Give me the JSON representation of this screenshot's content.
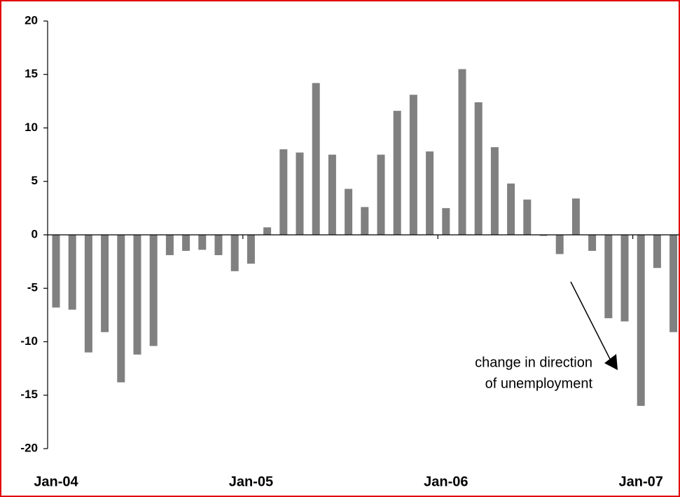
{
  "chart_data": {
    "type": "bar",
    "categories": [
      "Jan-04",
      null,
      null,
      null,
      null,
      null,
      null,
      null,
      null,
      null,
      null,
      null,
      "Jan-05",
      null,
      null,
      null,
      null,
      null,
      null,
      null,
      null,
      null,
      null,
      null,
      "Jan-06",
      null,
      null,
      null,
      null,
      null,
      null,
      null,
      null,
      null,
      null,
      null,
      "Jan-07",
      null,
      null
    ],
    "values": [
      -6.8,
      -7.0,
      -11.0,
      -9.1,
      -13.8,
      -11.2,
      -10.4,
      -1.9,
      -1.5,
      -1.4,
      -1.9,
      -3.4,
      -2.7,
      0.7,
      8.0,
      7.7,
      14.2,
      7.5,
      4.3,
      2.6,
      7.5,
      11.6,
      13.1,
      7.8,
      2.5,
      15.5,
      12.4,
      8.2,
      4.8,
      3.3,
      -0.1,
      -1.8,
      3.4,
      -1.5,
      -7.8,
      -8.1,
      -16.0,
      -3.1,
      -9.1
    ],
    "color": "#808080",
    "ylim": [
      -20,
      20
    ],
    "yticks": [
      -20,
      -15,
      -10,
      -5,
      0,
      5,
      10,
      15,
      20
    ],
    "annotation": [
      "change in direction",
      "of unemployment"
    ]
  }
}
